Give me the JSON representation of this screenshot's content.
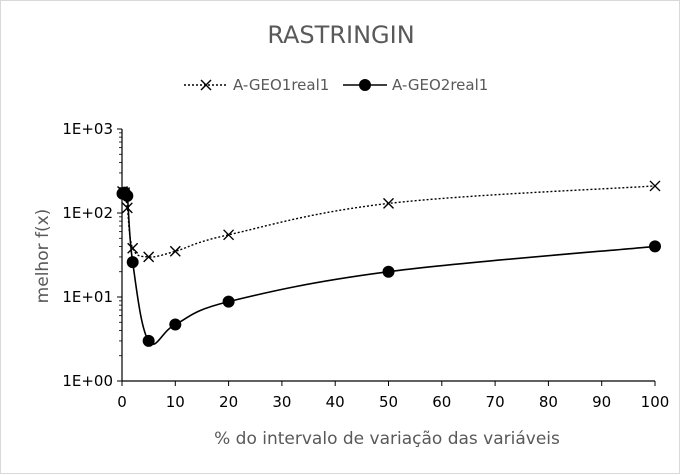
{
  "chart_data": {
    "type": "line",
    "title": "RASTRINGIN",
    "xlabel": "% do intervalo de variação das variáveis",
    "ylabel": "melhor f(x)",
    "xlim": [
      0,
      100
    ],
    "ylim": [
      1,
      1000
    ],
    "y_scale": "log",
    "x_ticks": [
      "0",
      "10",
      "20",
      "30",
      "40",
      "50",
      "60",
      "70",
      "80",
      "90",
      "100"
    ],
    "y_ticks": [
      "1E+00",
      "1E+01",
      "1E+02",
      "1E+03"
    ],
    "grid": false,
    "legend_position": "top",
    "series": [
      {
        "name": "A-GEO1real1",
        "marker": "x",
        "line_style": "dotted",
        "color": "#000000",
        "x": [
          0.1,
          0.5,
          1,
          2,
          5,
          10,
          20,
          50,
          100
        ],
        "y": [
          180,
          175,
          115,
          38,
          30,
          35,
          55,
          130,
          210
        ]
      },
      {
        "name": "A-GEO2real1",
        "marker": "circle",
        "line_style": "solid",
        "color": "#000000",
        "x": [
          0.1,
          0.5,
          1,
          2,
          5,
          10,
          20,
          50,
          100
        ],
        "y": [
          170,
          175,
          160,
          26,
          3,
          4.7,
          8.8,
          20,
          40
        ]
      }
    ]
  }
}
